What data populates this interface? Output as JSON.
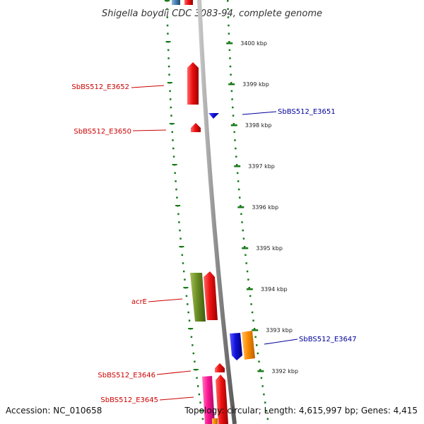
{
  "title": "Shigella boydii CDC 3083-94, complete genome",
  "footer": {
    "accession": "Accession: NC_010658",
    "topology": "Topology: circular; Length: 4,615,997 bp; Genes: 4,415"
  },
  "scale_ticks": [
    {
      "label": "3400 kbp",
      "kbp": 3400
    },
    {
      "label": "3399 kbp",
      "kbp": 3399
    },
    {
      "label": "3398 kbp",
      "kbp": 3398
    },
    {
      "label": "3397 kbp",
      "kbp": 3397
    },
    {
      "label": "3396 kbp",
      "kbp": 3396
    },
    {
      "label": "3395 kbp",
      "kbp": 3395
    },
    {
      "label": "3394 kbp",
      "kbp": 3394
    },
    {
      "label": "3393 kbp",
      "kbp": 3393
    },
    {
      "label": "3392 kbp",
      "kbp": 3392
    }
  ],
  "genes": [
    {
      "name": "SbBS512_E3652",
      "strand": "left",
      "color": "#cc0000"
    },
    {
      "name": "SbBS512_E3651",
      "strand": "right",
      "color": "#000099"
    },
    {
      "name": "SbBS512_E3650",
      "strand": "left",
      "color": "#cc0000"
    },
    {
      "name": "acrE",
      "strand": "left",
      "color": "#cc0000"
    },
    {
      "name": "SbBS512_E3647",
      "strand": "right",
      "color": "#000099"
    },
    {
      "name": "SbBS512_E3646",
      "strand": "left",
      "color": "#cc0000"
    },
    {
      "name": "SbBS512_E3645",
      "strand": "left",
      "color": "#cc0000"
    }
  ],
  "colors": {
    "backbone": "#8c8c8c",
    "dotted_guides": "#1a7a1a",
    "red_feature": "#ee1111",
    "blue_feature": "#1111dd",
    "olive_feature": "#6b8e23",
    "orange_feature": "#ff8c00",
    "pink_feature": "#ff1493",
    "steelblue_feature": "#4682b4"
  }
}
